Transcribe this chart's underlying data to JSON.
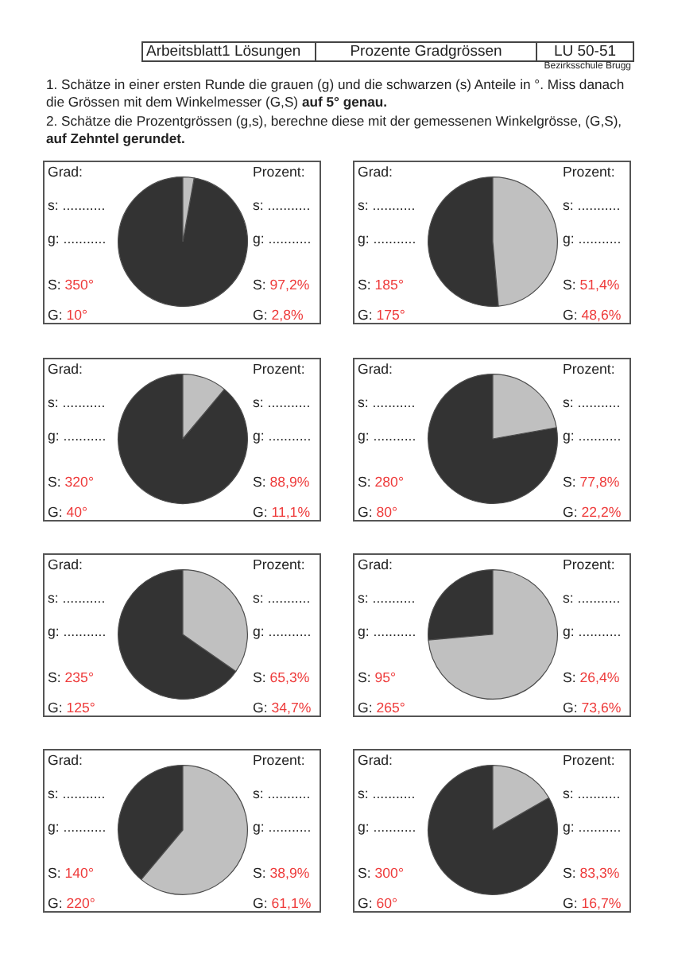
{
  "chart_data": [
    {
      "type": "other",
      "title": "Prozente Gradgrössen",
      "annotations": [
        "Arbeitsblatt1 Lösungen",
        "LU 50-51",
        "Bezirksschule Brugg",
        "1. Schätze in einer ersten Runde die grauen (g) und die schwarzen (s) Anteile in °. Miss danach die Grössen mit dem Winkelmesser (G,S)",
        "auf 5° genau.",
        "2. Schätze die Prozentgrössen (g,s), berechne diese mit der gemessenen Winkelgrösse, (G,S),",
        "auf Zehntel gerundet."
      ]
    },
    {
      "type": "pie",
      "categories": [
        null,
        null
      ],
      "values": [
        97.2,
        2.8
      ],
      "colors": [
        "#333333",
        "#c0c0c0"
      ],
      "annotations": [
        "Grad:",
        "Prozent:",
        "s: ...........",
        "g: ...........",
        "s: ...........",
        "g: ...........",
        "S: 350°",
        "G: 10°",
        "S: 97,2%",
        "G: 2,8%"
      ]
    },
    {
      "type": "pie",
      "categories": [
        null,
        null
      ],
      "values": [
        51.4,
        48.6
      ],
      "colors": [
        "#333333",
        "#c0c0c0"
      ],
      "annotations": [
        "Grad:",
        "Prozent:",
        "s: ...........",
        "g: ...........",
        "s: ...........",
        "g: ...........",
        "S: 185°",
        "G: 175°",
        "S: 51,4%",
        "G: 48,6%"
      ]
    },
    {
      "type": "pie",
      "categories": [
        null,
        null
      ],
      "values": [
        88.9,
        11.1
      ],
      "colors": [
        "#333333",
        "#c0c0c0"
      ],
      "annotations": [
        "Grad:",
        "Prozent:",
        "s: ...........",
        "g: ...........",
        "s: ...........",
        "g: ...........",
        "S: 320°",
        "G: 40°",
        "S: 88,9%",
        "G: 11,1%"
      ]
    },
    {
      "type": "pie",
      "categories": [
        null,
        null
      ],
      "values": [
        77.8,
        22.2
      ],
      "colors": [
        "#333333",
        "#c0c0c0"
      ],
      "annotations": [
        "Grad:",
        "Prozent:",
        "s: ...........",
        "g: ...........",
        "s: ...........",
        "g: ...........",
        "S: 280°",
        "G: 80°",
        "S: 77,8%",
        "G: 22,2%"
      ]
    },
    {
      "type": "pie",
      "categories": [
        null,
        null
      ],
      "values": [
        65.3,
        34.7
      ],
      "colors": [
        "#333333",
        "#c0c0c0"
      ],
      "annotations": [
        "Grad:",
        "Prozent:",
        "s: ...........",
        "g: ...........",
        "s: ...........",
        "g: ...........",
        "S: 235°",
        "G: 125°",
        "S: 65,3%",
        "G: 34,7%"
      ]
    },
    {
      "type": "pie",
      "categories": [
        null,
        null
      ],
      "values": [
        26.4,
        73.6
      ],
      "colors": [
        "#333333",
        "#c0c0c0"
      ],
      "annotations": [
        "Grad:",
        "Prozent:",
        "s: ...........",
        "g: ...........",
        "s: ...........",
        "g: ...........",
        "S: 95°",
        "G: 265°",
        "S: 26,4%",
        "G: 73,6%"
      ]
    },
    {
      "type": "pie",
      "categories": [
        null,
        null
      ],
      "values": [
        38.9,
        61.1
      ],
      "colors": [
        "#333333",
        "#c0c0c0"
      ],
      "annotations": [
        "Grad:",
        "Prozent:",
        "s: ...........",
        "g: ...........",
        "s: ...........",
        "g: ...........",
        "S: 140°",
        "G: 220°",
        "S: 38,9%",
        "G: 61,1%"
      ]
    },
    {
      "type": "pie",
      "categories": [
        null,
        null
      ],
      "values": [
        83.3,
        16.7
      ],
      "colors": [
        "#333333",
        "#c0c0c0"
      ],
      "annotations": [
        "Grad:",
        "Prozent:",
        "s: ...........",
        "g: ...........",
        "s: ...........",
        "g: ...........",
        "S: 300°",
        "G: 60°",
        "S: 83,3%",
        "G: 16,7%"
      ]
    }
  ]
}
